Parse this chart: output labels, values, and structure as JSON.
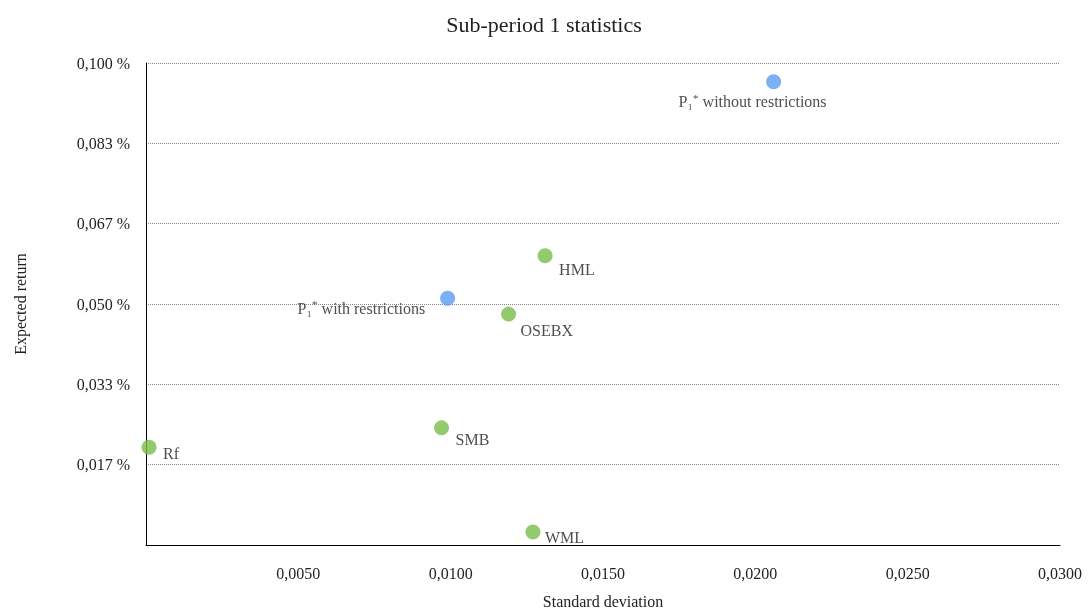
{
  "chart_data": {
    "type": "scatter",
    "title": "Sub-period 1 statistics",
    "xlabel": "Standard deviation",
    "ylabel": "Expected return",
    "series": [
      {
        "name": "P₁$^{*}$ without restrictions",
        "color": "#5b9cf2",
        "x": [
          0.0206
        ],
        "values": [
          0.0961
        ]
      },
      {
        "name": "P₁$^{*}$ with restrictions",
        "color": "#5b9cf2",
        "x": [
          0.0099
        ],
        "values": [
          0.0512
        ]
      },
      {
        "name": "HML",
        "color": "#79bd4a",
        "x": [
          0.0131
        ],
        "values": [
          0.06
        ]
      },
      {
        "name": "OSEBX",
        "color": "#79bd4a",
        "x": [
          0.0119
        ],
        "values": [
          0.0479
        ]
      },
      {
        "name": "SMB",
        "color": "#79bd4a",
        "x": [
          0.0097
        ],
        "values": [
          0.0243
        ]
      },
      {
        "name": "Rf",
        "color": "#79bd4a",
        "x": [
          0.0001
        ],
        "values": [
          0.0203
        ]
      },
      {
        "name": "WML",
        "color": "#79bd4a",
        "x": [
          0.0127
        ],
        "values": [
          0.0027
        ]
      }
    ],
    "xlim": [
      0,
      0.03
    ],
    "xticks": [
      {
        "value": 0.005,
        "label": "0,0050"
      },
      {
        "value": 0.01,
        "label": "0,0100"
      },
      {
        "value": 0.015,
        "label": "0,0150"
      },
      {
        "value": 0.02,
        "label": "0,0200"
      },
      {
        "value": 0.025,
        "label": "0,0250"
      },
      {
        "value": 0.03,
        "label": "0,0300"
      }
    ],
    "ylim": [
      0,
      0.1
    ],
    "yticks": [
      {
        "value": 0.016667,
        "label": "0,017 %"
      },
      {
        "value": 0.033333,
        "label": "0,033 %"
      },
      {
        "value": 0.05,
        "label": "0,050 %"
      },
      {
        "value": 0.066667,
        "label": "0,067 %"
      },
      {
        "value": 0.083333,
        "label": "0,083 %"
      },
      {
        "value": 0.1,
        "label": "0,100 %"
      }
    ],
    "grid": "y",
    "legend": false,
    "marker": "circle"
  }
}
